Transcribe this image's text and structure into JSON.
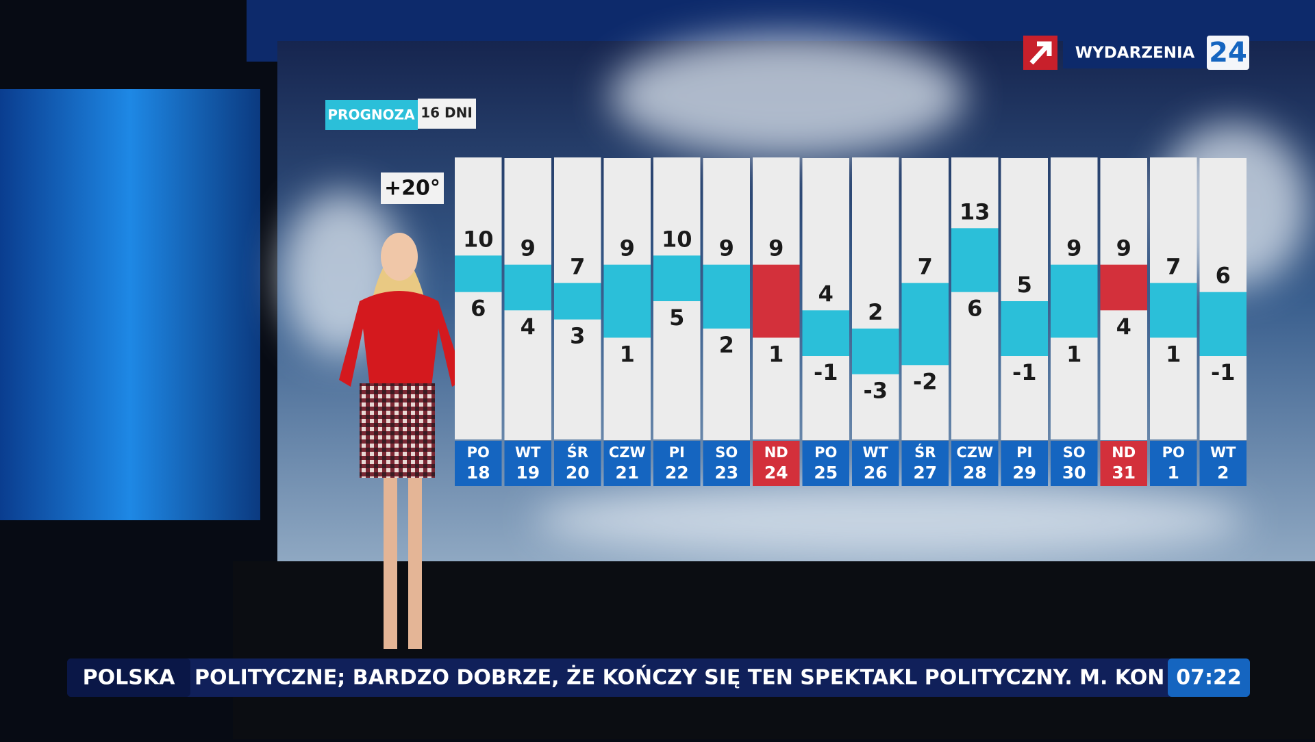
{
  "chart_data": {
    "type": "range-bar",
    "badge": {
      "title": "PROGNOZA",
      "days": "16 DNI"
    },
    "categories": [
      "PO",
      "WT",
      "ŚR",
      "CZW",
      "PI",
      "SO",
      "ND",
      "PO",
      "WT",
      "ŚR",
      "CZW",
      "PI",
      "SO",
      "ND",
      "PO",
      "WT"
    ],
    "dates": [
      18,
      19,
      20,
      21,
      22,
      23,
      24,
      25,
      26,
      27,
      28,
      29,
      30,
      31,
      1,
      2
    ],
    "highs": [
      10,
      9,
      7,
      9,
      10,
      9,
      9,
      4,
      2,
      7,
      13,
      5,
      9,
      9,
      7,
      6
    ],
    "lows": [
      6,
      4,
      3,
      1,
      5,
      2,
      1,
      -1,
      -3,
      -2,
      6,
      -1,
      1,
      4,
      1,
      -1
    ],
    "bar_colors": [
      "#2bbfd9",
      "#2bbfd9",
      "#2bbfd9",
      "#2bbfd9",
      "#2bbfd9",
      "#2bbfd9",
      "#d3303b",
      "#2bbfd9",
      "#2bbfd9",
      "#2bbfd9",
      "#2bbfd9",
      "#2bbfd9",
      "#2bbfd9",
      "#d3303b",
      "#2bbfd9",
      "#2bbfd9"
    ],
    "label_colors": [
      "#1565c0",
      "#1565c0",
      "#1565c0",
      "#1565c0",
      "#1565c0",
      "#1565c0",
      "#d3303b",
      "#1565c0",
      "#1565c0",
      "#1565c0",
      "#1565c0",
      "#1565c0",
      "#1565c0",
      "#d3303b",
      "#1565c0",
      "#1565c0"
    ],
    "ylim": [
      -10,
      20
    ],
    "yticks": [
      {
        "value": 20,
        "label": "+20°"
      }
    ]
  },
  "channel": {
    "name": "WYDARZENIA",
    "number": "24"
  },
  "ticker": {
    "section": "POLSKA",
    "text": "POLITYCZNE; BARDZO DOBRZE, ŻE KOŃCZY SIĘ TEN SPEKTAKL POLITYCZNY. M. KONIEC",
    "time": "07:22"
  }
}
